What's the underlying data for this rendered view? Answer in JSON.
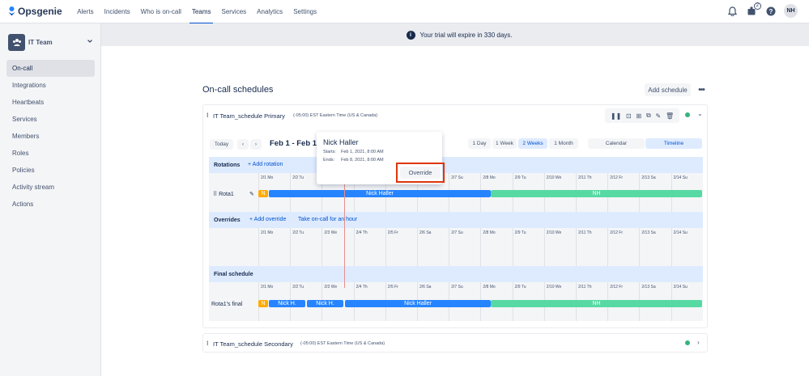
{
  "app": {
    "name": "Opsgenie"
  },
  "nav": {
    "items": [
      "Alerts",
      "Incidents",
      "Who is on-call",
      "Teams",
      "Services",
      "Analytics",
      "Settings"
    ],
    "active": "Teams",
    "notif_count": "2",
    "avatar": "NH"
  },
  "sidebar": {
    "team": "IT Team",
    "items": [
      "On-call",
      "Integrations",
      "Heartbeats",
      "Services",
      "Members",
      "Roles",
      "Policies",
      "Activity stream",
      "Actions"
    ],
    "active": "On-call"
  },
  "banner": {
    "text": "Your trial will expire in 330 days."
  },
  "page": {
    "title": "On-call schedules",
    "add_schedule": "Add schedule"
  },
  "schedule_primary": {
    "title": "IT Team_schedule Primary",
    "timezone": "(-05:00) EST Eastern Time (US & Canada)"
  },
  "schedule_secondary": {
    "title": "IT Team_schedule Secondary",
    "timezone": "(-05:00) EST Eastern Time (US & Canada)"
  },
  "toolbar": {
    "today": "Today",
    "prev": "‹",
    "next": "›",
    "range": "Feb 1 - Feb 14",
    "views": [
      "1 Day",
      "1 Week",
      "2 Weeks",
      "1 Month"
    ],
    "active_view": "2 Weeks",
    "calendar": "Calendar",
    "timeline": "Timeline"
  },
  "days": [
    "2/1 Mo",
    "2/2 Tu",
    "2/3 We",
    "2/4 Th",
    "2/5 Fr",
    "2/6 Sa",
    "2/7 Su",
    "2/8 Mo",
    "2/9 Tu",
    "2/10 We",
    "2/11 Th",
    "2/12 Fr",
    "2/13 Sa",
    "2/14 Su"
  ],
  "rotations": {
    "label": "Rotations",
    "add": "+ Add rotation",
    "rota_name": "Rota1",
    "bar_n": "N",
    "bar_main": "Nick Haller",
    "bar_end": "NH"
  },
  "overrides": {
    "label": "Overrides",
    "add": "+ Add override",
    "take": "Take on-call for an hour"
  },
  "final": {
    "label": "Final schedule",
    "rota_name": "Rota1's final",
    "n": "N",
    "nick1": "Nick H.",
    "nick2": "Nick H.",
    "main": "Nick Haller",
    "end": "NH"
  },
  "popup": {
    "name": "Nick Haller",
    "starts_label": "Starts:",
    "starts": "Feb 1, 2021, 8:00 AM",
    "ends_label": "Ends:",
    "ends": "Feb 8, 2021, 8:00 AM",
    "override": "Override"
  },
  "colors": {
    "accent": "#0052cc",
    "bar_blue": "#2684ff",
    "bar_green": "#57d9a3",
    "bar_orange": "#ffab00",
    "highlight": "#de350b"
  }
}
